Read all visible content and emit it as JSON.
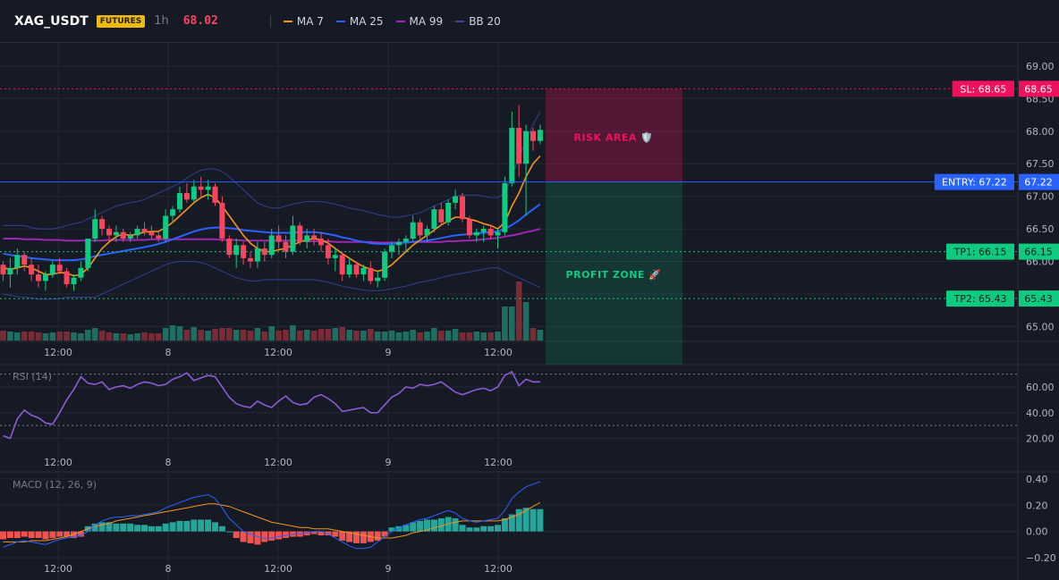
{
  "header": {
    "symbol": "XAG_USDT",
    "badge": "FUTURES",
    "timeframe": "1h",
    "last_price": "68.02",
    "legend": [
      {
        "label": "MA 7",
        "color": "#f7931a"
      },
      {
        "label": "MA 25",
        "color": "#2962ff"
      },
      {
        "label": "MA 99",
        "color": "#9c27b0"
      },
      {
        "label": "BB 20",
        "color": "#3949ab"
      }
    ]
  },
  "colors": {
    "up": "#0ecb81",
    "down": "#f6465d",
    "vol_up": "#1e6e62",
    "vol_down": "#7a2b35",
    "grid": "#242836",
    "rsi": "#8e5ad6",
    "macd": "#2962ff",
    "signal": "#f7931a"
  },
  "chart_data": [
    {
      "type": "candlestick",
      "name": "price",
      "ylim": [
        64.8,
        69.3
      ],
      "y_ticks": [
        "69.00",
        "68.50",
        "68.00",
        "67.50",
        "67.00",
        "66.50",
        "66.00",
        "65.50",
        "65.00"
      ],
      "x_ticks": [
        "12:00",
        "8",
        "12:00",
        "9",
        "12:00"
      ],
      "candles": [
        [
          65.95,
          66.0,
          65.7,
          65.8
        ],
        [
          65.8,
          66.05,
          65.6,
          65.9
        ],
        [
          65.9,
          66.2,
          65.8,
          66.1
        ],
        [
          66.1,
          66.15,
          65.85,
          65.95
        ],
        [
          65.95,
          66.05,
          65.7,
          65.8
        ],
        [
          65.8,
          65.95,
          65.6,
          65.7
        ],
        [
          65.7,
          65.85,
          65.55,
          65.8
        ],
        [
          65.8,
          66.0,
          65.75,
          65.95
        ],
        [
          65.95,
          66.05,
          65.8,
          65.85
        ],
        [
          65.85,
          65.9,
          65.6,
          65.65
        ],
        [
          65.65,
          65.8,
          65.55,
          65.75
        ],
        [
          65.75,
          66.0,
          65.7,
          65.9
        ],
        [
          65.9,
          66.35,
          65.85,
          66.35
        ],
        [
          66.35,
          66.8,
          66.3,
          66.65
        ],
        [
          66.65,
          66.7,
          66.4,
          66.5
        ],
        [
          66.5,
          66.55,
          66.3,
          66.4
        ],
        [
          66.4,
          66.55,
          66.3,
          66.45
        ],
        [
          66.45,
          66.5,
          66.3,
          66.35
        ],
        [
          66.35,
          66.45,
          66.3,
          66.4
        ],
        [
          66.4,
          66.55,
          66.35,
          66.5
        ],
        [
          66.5,
          66.6,
          66.4,
          66.45
        ],
        [
          66.45,
          66.55,
          66.35,
          66.4
        ],
        [
          66.4,
          66.45,
          66.3,
          66.35
        ],
        [
          66.35,
          66.8,
          66.3,
          66.7
        ],
        [
          66.7,
          66.85,
          66.6,
          66.8
        ],
        [
          66.8,
          67.15,
          66.75,
          67.05
        ],
        [
          67.05,
          67.2,
          66.9,
          66.95
        ],
        [
          66.95,
          67.25,
          66.9,
          67.15
        ],
        [
          67.15,
          67.3,
          67.0,
          67.1
        ],
        [
          67.1,
          67.25,
          66.95,
          67.15
        ],
        [
          67.15,
          67.2,
          66.85,
          66.9
        ],
        [
          66.9,
          67.0,
          66.3,
          66.35
        ],
        [
          66.35,
          66.4,
          66.05,
          66.1
        ],
        [
          66.1,
          66.35,
          65.9,
          66.25
        ],
        [
          66.25,
          66.3,
          65.95,
          66.05
        ],
        [
          66.05,
          66.15,
          65.9,
          66.0
        ],
        [
          66.0,
          66.3,
          65.9,
          66.2
        ],
        [
          66.2,
          66.3,
          66.0,
          66.1
        ],
        [
          66.1,
          66.5,
          66.05,
          66.4
        ],
        [
          66.4,
          66.55,
          66.2,
          66.3
        ],
        [
          66.3,
          66.4,
          66.05,
          66.15
        ],
        [
          66.15,
          66.7,
          66.1,
          66.55
        ],
        [
          66.55,
          66.6,
          66.25,
          66.3
        ],
        [
          66.3,
          66.5,
          66.2,
          66.4
        ],
        [
          66.4,
          66.5,
          66.25,
          66.35
        ],
        [
          66.35,
          66.45,
          66.15,
          66.25
        ],
        [
          66.25,
          66.35,
          65.95,
          66.05
        ],
        [
          66.05,
          66.2,
          65.85,
          66.1
        ],
        [
          66.1,
          66.15,
          65.7,
          65.8
        ],
        [
          65.8,
          66.05,
          65.75,
          65.95
        ],
        [
          65.95,
          66.0,
          65.75,
          65.8
        ],
        [
          65.8,
          65.95,
          65.7,
          65.9
        ],
        [
          65.9,
          66.0,
          65.65,
          65.7
        ],
        [
          65.7,
          65.85,
          65.6,
          65.75
        ],
        [
          65.75,
          66.2,
          65.7,
          66.15
        ],
        [
          66.15,
          66.3,
          66.05,
          66.25
        ],
        [
          66.25,
          66.35,
          66.1,
          66.3
        ],
        [
          66.3,
          66.4,
          66.15,
          66.35
        ],
        [
          66.35,
          66.7,
          66.3,
          66.6
        ],
        [
          66.6,
          66.65,
          66.35,
          66.4
        ],
        [
          66.4,
          66.55,
          66.3,
          66.5
        ],
        [
          66.5,
          66.85,
          66.45,
          66.8
        ],
        [
          66.8,
          66.9,
          66.55,
          66.6
        ],
        [
          66.6,
          66.95,
          66.55,
          66.9
        ],
        [
          66.9,
          67.1,
          66.8,
          67.0
        ],
        [
          67.0,
          67.05,
          66.6,
          66.65
        ],
        [
          66.65,
          66.7,
          66.35,
          66.4
        ],
        [
          66.4,
          66.5,
          66.3,
          66.45
        ],
        [
          66.45,
          66.55,
          66.3,
          66.5
        ],
        [
          66.5,
          66.55,
          66.35,
          66.4
        ],
        [
          66.4,
          66.5,
          66.2,
          66.45
        ],
        [
          66.45,
          67.3,
          66.4,
          67.2
        ],
        [
          67.2,
          68.3,
          67.15,
          68.05
        ],
        [
          68.05,
          68.4,
          67.3,
          67.5
        ],
        [
          67.5,
          68.1,
          66.7,
          68.0
        ],
        [
          68.0,
          68.05,
          67.7,
          67.85
        ],
        [
          67.85,
          68.1,
          67.8,
          68.02
        ]
      ],
      "ma7": [
        65.9,
        65.88,
        65.9,
        65.93,
        65.9,
        65.85,
        65.8,
        65.8,
        65.83,
        65.82,
        65.78,
        65.8,
        65.9,
        66.05,
        66.2,
        66.3,
        66.38,
        66.42,
        66.4,
        66.42,
        66.45,
        66.46,
        66.46,
        66.52,
        66.6,
        66.7,
        66.8,
        66.9,
        66.98,
        67.03,
        66.98,
        66.85,
        66.7,
        66.55,
        66.4,
        66.28,
        66.2,
        66.15,
        66.15,
        66.18,
        66.2,
        66.25,
        66.3,
        66.33,
        66.35,
        66.33,
        66.28,
        66.2,
        66.12,
        66.05,
        65.98,
        65.92,
        65.88,
        65.85,
        65.88,
        65.95,
        66.05,
        66.15,
        66.25,
        66.33,
        66.4,
        66.48,
        66.56,
        66.62,
        66.68,
        66.68,
        66.65,
        66.62,
        66.58,
        66.55,
        66.5,
        66.6,
        66.85,
        67.05,
        67.3,
        67.5,
        67.62
      ],
      "ma25": [
        66.12,
        66.1,
        66.08,
        66.07,
        66.05,
        66.04,
        66.03,
        66.02,
        66.02,
        66.02,
        66.02,
        66.03,
        66.05,
        66.08,
        66.1,
        66.12,
        66.14,
        66.16,
        66.18,
        66.2,
        66.22,
        66.24,
        66.27,
        66.3,
        66.34,
        66.38,
        66.42,
        66.46,
        66.49,
        66.51,
        66.52,
        66.52,
        66.51,
        66.5,
        66.48,
        66.47,
        66.46,
        66.45,
        66.44,
        66.44,
        66.44,
        66.44,
        66.45,
        66.45,
        66.45,
        66.44,
        66.42,
        66.4,
        66.37,
        66.35,
        66.32,
        66.3,
        66.28,
        66.27,
        66.27,
        66.27,
        66.28,
        66.29,
        66.3,
        66.31,
        66.32,
        66.34,
        66.36,
        66.38,
        66.4,
        66.41,
        66.42,
        66.43,
        66.44,
        66.45,
        66.46,
        66.5,
        66.56,
        66.63,
        66.72,
        66.8,
        66.88
      ],
      "ma99": [
        66.35,
        66.35,
        66.35,
        66.34,
        66.34,
        66.34,
        66.33,
        66.33,
        66.33,
        66.32,
        66.32,
        66.32,
        66.32,
        66.32,
        66.32,
        66.33,
        66.33,
        66.33,
        66.33,
        66.33,
        66.33,
        66.34,
        66.34,
        66.34,
        66.34,
        66.34,
        66.34,
        66.34,
        66.34,
        66.34,
        66.34,
        66.33,
        66.33,
        66.33,
        66.32,
        66.32,
        66.32,
        66.32,
        66.32,
        66.32,
        66.32,
        66.32,
        66.32,
        66.31,
        66.31,
        66.31,
        66.31,
        66.3,
        66.3,
        66.3,
        66.3,
        66.3,
        66.3,
        66.29,
        66.29,
        66.29,
        66.29,
        66.29,
        66.3,
        66.3,
        66.3,
        66.3,
        66.3,
        66.31,
        66.31,
        66.32,
        66.32,
        66.33,
        66.34,
        66.35,
        66.36,
        66.38,
        66.4,
        66.42,
        66.45,
        66.47,
        66.5
      ],
      "bb_upper": [
        66.55,
        66.55,
        66.55,
        66.55,
        66.52,
        66.5,
        66.5,
        66.5,
        66.52,
        66.55,
        66.58,
        66.6,
        66.65,
        66.7,
        66.75,
        66.8,
        66.85,
        66.88,
        66.9,
        66.92,
        66.95,
        67.0,
        67.05,
        67.1,
        67.15,
        67.2,
        67.28,
        67.35,
        67.4,
        67.42,
        67.42,
        67.38,
        67.3,
        67.2,
        67.1,
        67.0,
        66.9,
        66.85,
        66.82,
        66.82,
        66.85,
        66.88,
        66.9,
        66.92,
        66.92,
        66.92,
        66.9,
        66.88,
        66.85,
        66.82,
        66.8,
        66.78,
        66.75,
        66.72,
        66.7,
        66.68,
        66.68,
        66.7,
        66.72,
        66.75,
        66.8,
        66.85,
        66.9,
        66.95,
        67.0,
        67.02,
        67.02,
        67.02,
        67.0,
        66.98,
        66.98,
        67.05,
        67.3,
        67.6,
        67.85,
        68.1,
        68.3
      ],
      "bb_lower": [
        65.5,
        65.48,
        65.46,
        65.45,
        65.44,
        65.42,
        65.42,
        65.42,
        65.43,
        65.45,
        65.45,
        65.45,
        65.45,
        65.45,
        65.5,
        65.55,
        65.6,
        65.65,
        65.7,
        65.75,
        65.8,
        65.85,
        65.9,
        65.95,
        65.98,
        66.0,
        66.0,
        66.0,
        65.98,
        65.95,
        65.9,
        65.85,
        65.8,
        65.75,
        65.72,
        65.7,
        65.7,
        65.72,
        65.72,
        65.72,
        65.72,
        65.72,
        65.72,
        65.72,
        65.72,
        65.7,
        65.68,
        65.65,
        65.62,
        65.6,
        65.58,
        65.56,
        65.55,
        65.55,
        65.56,
        65.58,
        65.6,
        65.62,
        65.65,
        65.68,
        65.7,
        65.72,
        65.75,
        65.78,
        65.8,
        65.82,
        65.84,
        65.86,
        65.88,
        65.9,
        65.9,
        65.85,
        65.8,
        65.75,
        65.7,
        65.65,
        65.6
      ],
      "volume": [
        11,
        10,
        9,
        10,
        10,
        9,
        8,
        9,
        10,
        10,
        9,
        8,
        12,
        14,
        11,
        9,
        8,
        8,
        7,
        8,
        9,
        8,
        8,
        14,
        17,
        16,
        12,
        15,
        12,
        11,
        13,
        14,
        14,
        12,
        12,
        11,
        14,
        10,
        16,
        11,
        12,
        17,
        11,
        12,
        11,
        13,
        13,
        14,
        15,
        12,
        11,
        11,
        13,
        10,
        10,
        11,
        9,
        10,
        12,
        9,
        10,
        14,
        11,
        11,
        13,
        9,
        9,
        10,
        9,
        9,
        10,
        38,
        38,
        66,
        43,
        14,
        12
      ]
    },
    {
      "type": "line",
      "name": "RSI (14)",
      "ylim": [
        12,
        76
      ],
      "y_ticks": [
        "60.00",
        "40.00",
        "20.00"
      ],
      "x_ticks": [
        "12:00",
        "8",
        "12:00",
        "9",
        "12:00"
      ],
      "levels": [
        70,
        30
      ],
      "values": [
        22,
        20,
        35,
        42,
        38,
        36,
        32,
        31,
        40,
        50,
        58,
        68,
        63,
        62,
        64,
        58,
        60,
        61,
        59,
        62,
        64,
        63,
        61,
        62,
        66,
        68,
        71,
        65,
        67,
        69,
        68,
        60,
        52,
        47,
        45,
        44,
        49,
        46,
        44,
        49,
        53,
        48,
        46,
        47,
        52,
        54,
        51,
        47,
        41,
        42,
        43,
        44,
        40,
        40,
        46,
        52,
        55,
        60,
        59,
        62,
        61,
        62,
        64,
        60,
        56,
        54,
        56,
        58,
        59,
        57,
        60,
        69,
        72,
        61,
        66,
        64,
        64
      ]
    },
    {
      "type": "bar_line",
      "name": "MACD (12, 26, 9)",
      "ylim": [
        -0.22,
        0.44
      ],
      "y_ticks": [
        "0.40",
        "0.20",
        "0.00",
        "−0.20"
      ],
      "x_ticks": [
        "12:00",
        "8",
        "12:00",
        "9",
        "12:00"
      ],
      "histogram": [
        -0.06,
        -0.05,
        -0.05,
        -0.04,
        -0.05,
        -0.05,
        -0.06,
        -0.05,
        -0.04,
        -0.04,
        -0.05,
        -0.04,
        0.04,
        0.06,
        0.07,
        0.07,
        0.06,
        0.06,
        0.06,
        0.05,
        0.05,
        0.04,
        0.04,
        0.06,
        0.07,
        0.08,
        0.08,
        0.09,
        0.09,
        0.09,
        0.07,
        0.04,
        0.0,
        -0.05,
        -0.08,
        -0.09,
        -0.1,
        -0.08,
        -0.07,
        -0.06,
        -0.05,
        -0.04,
        -0.04,
        -0.03,
        -0.02,
        -0.03,
        -0.03,
        -0.04,
        -0.07,
        -0.08,
        -0.09,
        -0.09,
        -0.08,
        -0.07,
        -0.04,
        0.03,
        0.04,
        0.05,
        0.07,
        0.08,
        0.09,
        0.09,
        0.1,
        0.11,
        0.1,
        0.05,
        0.03,
        0.03,
        0.04,
        0.04,
        0.05,
        0.1,
        0.13,
        0.17,
        0.18,
        0.17,
        0.17
      ],
      "macd": [
        -0.12,
        -0.1,
        -0.08,
        -0.07,
        -0.08,
        -0.09,
        -0.1,
        -0.08,
        -0.06,
        -0.05,
        -0.04,
        -0.03,
        0.0,
        0.05,
        0.08,
        0.1,
        0.11,
        0.11,
        0.12,
        0.12,
        0.13,
        0.14,
        0.15,
        0.18,
        0.2,
        0.22,
        0.24,
        0.26,
        0.27,
        0.28,
        0.25,
        0.18,
        0.1,
        0.05,
        0.0,
        -0.02,
        -0.04,
        -0.05,
        -0.05,
        -0.04,
        -0.03,
        -0.02,
        -0.02,
        -0.01,
        0.0,
        0.0,
        -0.02,
        -0.05,
        -0.08,
        -0.11,
        -0.13,
        -0.13,
        -0.12,
        -0.08,
        -0.04,
        0.0,
        0.02,
        0.05,
        0.07,
        0.09,
        0.1,
        0.12,
        0.14,
        0.16,
        0.14,
        0.1,
        0.08,
        0.07,
        0.08,
        0.09,
        0.1,
        0.16,
        0.25,
        0.3,
        0.34,
        0.36,
        0.38
      ],
      "signal": [
        -0.08,
        -0.08,
        -0.08,
        -0.08,
        -0.07,
        -0.07,
        -0.07,
        -0.06,
        -0.05,
        -0.04,
        -0.02,
        0.0,
        0.02,
        0.04,
        0.05,
        0.06,
        0.08,
        0.09,
        0.1,
        0.11,
        0.12,
        0.13,
        0.14,
        0.15,
        0.16,
        0.17,
        0.18,
        0.19,
        0.2,
        0.21,
        0.21,
        0.2,
        0.19,
        0.17,
        0.15,
        0.13,
        0.11,
        0.09,
        0.07,
        0.06,
        0.05,
        0.04,
        0.03,
        0.03,
        0.02,
        0.02,
        0.02,
        0.01,
        0.0,
        -0.01,
        -0.02,
        -0.03,
        -0.04,
        -0.05,
        -0.05,
        -0.05,
        -0.04,
        -0.03,
        -0.01,
        0.0,
        0.01,
        0.03,
        0.04,
        0.06,
        0.07,
        0.08,
        0.08,
        0.08,
        0.08,
        0.08,
        0.08,
        0.09,
        0.11,
        0.13,
        0.16,
        0.19,
        0.22
      ]
    }
  ],
  "trade": {
    "sl": {
      "label": "SL: 68.65",
      "value": 68.65,
      "axis_label": "68.65",
      "color": "#f0115c"
    },
    "entry": {
      "label": "ENTRY: 67.22",
      "value": 67.22,
      "axis_label": "67.22",
      "color": "#2962ff"
    },
    "tp1": {
      "label": "TP1: 66.15",
      "value": 66.15,
      "axis_label": "66.15",
      "color": "#0ecb81"
    },
    "tp2": {
      "label": "TP2: 65.43",
      "value": 65.43,
      "axis_label": "65.43",
      "color": "#0ecb81"
    },
    "risk_label": "RISK AREA 🛡️",
    "profit_label": "PROFIT ZONE 🚀"
  }
}
